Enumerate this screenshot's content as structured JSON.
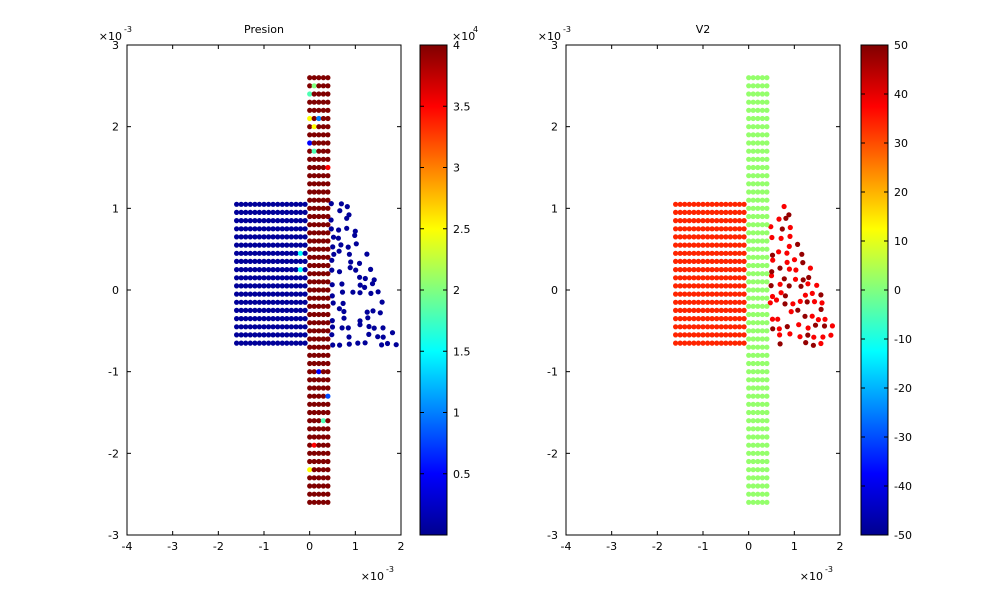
{
  "chart_data": [
    {
      "type": "scatter",
      "title": "Presion",
      "xlim": [
        -0.004,
        0.002
      ],
      "ylim": [
        -0.003,
        0.003
      ],
      "x_ticks": [
        "-4",
        "-3",
        "-2",
        "-1",
        "0",
        "1",
        "2"
      ],
      "y_ticks": [
        "-3",
        "-2",
        "-1",
        "0",
        "1",
        "2",
        "3"
      ],
      "x_multiplier": {
        "base": "×10",
        "exponent": "-3"
      },
      "y_multiplier": {
        "base": "×10",
        "exponent": "-3"
      },
      "grid": false,
      "colormap": "jet",
      "colorbar": {
        "range": [
          0,
          40000
        ],
        "ticks": [
          "0.5",
          "1",
          "1.5",
          "2",
          "2.5",
          "3",
          "3.5",
          "4"
        ],
        "tick_values": [
          5000,
          10000,
          15000,
          20000,
          25000,
          30000,
          35000,
          40000
        ],
        "multiplier": {
          "base": "×10",
          "exponent": "4"
        }
      },
      "regions": {
        "vertical_band": {
          "x": [
            0,
            0.0001,
            0.0002,
            0.0003,
            0.0004
          ],
          "y_from": -0.0026,
          "y_to": 0.0026,
          "y_step": 0.0001,
          "value": 40000
        },
        "horizontal_block": {
          "x_from": -0.0016,
          "x_to": -0.0001,
          "x_step": 0.0001,
          "y_from": -0.00065,
          "y_to": 0.00105,
          "y_step": 0.0001,
          "value": 1000
        },
        "overlap_value": 40000,
        "scatter_tail": {
          "x_range": [
            0.0005,
            0.002
          ],
          "y_range": [
            -0.00065,
            0.00105
          ],
          "value": 1000
        },
        "band_outliers": [
          {
            "x": 0.0,
            "y": 0.0024,
            "value": 18000
          },
          {
            "x": 0.0001,
            "y": 0.0025,
            "value": 20000
          },
          {
            "x": 0.0001,
            "y": 0.002,
            "value": 25000
          },
          {
            "x": 0.0002,
            "y": 0.0021,
            "value": 10000
          },
          {
            "x": 0.0001,
            "y": 0.0017,
            "value": 18000
          },
          {
            "x": 0.0,
            "y": 0.0021,
            "value": 25000
          },
          {
            "x": 0.0004,
            "y": 0.0015,
            "value": 35000
          },
          {
            "x": 0.0,
            "y": 0.0018,
            "value": 5000
          },
          {
            "x": 0.0,
            "y": -0.0022,
            "value": 25000
          },
          {
            "x": 0.0003,
            "y": -0.0016,
            "value": 18000
          },
          {
            "x": 0.0001,
            "y": -0.0019,
            "value": 35000
          },
          {
            "x": 0.0002,
            "y": -0.001,
            "value": 5000
          },
          {
            "x": 0.0004,
            "y": -0.0013,
            "value": 8000
          }
        ],
        "block_outliers": [
          {
            "x": -0.0002,
            "y": 0.00045,
            "value": 15000
          },
          {
            "x": -0.0002,
            "y": 0.00025,
            "value": 15000
          }
        ]
      }
    },
    {
      "type": "scatter",
      "title": "V2",
      "xlim": [
        -0.004,
        0.002
      ],
      "ylim": [
        -0.003,
        0.003
      ],
      "x_ticks": [
        "-4",
        "-3",
        "-2",
        "-1",
        "0",
        "1",
        "2"
      ],
      "y_ticks": [
        "-3",
        "-2",
        "-1",
        "0",
        "1",
        "2",
        "3"
      ],
      "x_multiplier": {
        "base": "×10",
        "exponent": "-3"
      },
      "y_multiplier": {
        "base": "×10",
        "exponent": "-3"
      },
      "grid": false,
      "colormap": "jet",
      "colorbar": {
        "range": [
          -50,
          50
        ],
        "ticks": [
          "-50",
          "-40",
          "-30",
          "-20",
          "-10",
          "0",
          "10",
          "20",
          "30",
          "40",
          "50"
        ],
        "tick_values": [
          -50,
          -40,
          -30,
          -20,
          -10,
          0,
          10,
          20,
          30,
          40,
          50
        ],
        "multiplier": null
      },
      "regions": {
        "vertical_band": {
          "x": [
            0,
            0.0001,
            0.0002,
            0.0003,
            0.0004
          ],
          "y_from": -0.0026,
          "y_to": 0.0026,
          "y_step": 0.0001,
          "value": 2
        },
        "horizontal_block": {
          "x_from": -0.0016,
          "x_to": -0.0001,
          "x_step": 0.0001,
          "y_from": -0.00065,
          "y_to": 0.00105,
          "y_step": 0.0001,
          "value": 34
        },
        "overlap_value": 2,
        "scatter_tail": {
          "x_range": [
            0.0005,
            0.002
          ],
          "y_range": [
            -0.00065,
            0.00105
          ],
          "value": 38,
          "dark_value": 48
        },
        "band_outliers": [],
        "block_outliers": []
      }
    }
  ]
}
